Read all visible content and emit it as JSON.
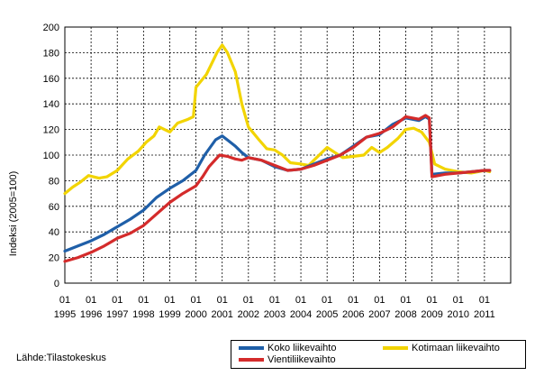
{
  "chart_data": {
    "type": "line",
    "title": "",
    "ylabel": "Indeksi (2005=100)",
    "xlabel": "",
    "ylim": [
      0,
      200
    ],
    "yticks": [
      0,
      20,
      40,
      60,
      80,
      100,
      120,
      140,
      160,
      180,
      200
    ],
    "xlim": [
      1995.0,
      2012.0
    ],
    "x_tick_labels": [
      {
        "month": "01",
        "year": "1995"
      },
      {
        "month": "01",
        "year": "1996"
      },
      {
        "month": "01",
        "year": "1997"
      },
      {
        "month": "01",
        "year": "1998"
      },
      {
        "month": "01",
        "year": "1999"
      },
      {
        "month": "01",
        "year": "2000"
      },
      {
        "month": "01",
        "year": "2001"
      },
      {
        "month": "01",
        "year": "2002"
      },
      {
        "month": "01",
        "year": "2003"
      },
      {
        "month": "01",
        "year": "2004"
      },
      {
        "month": "01",
        "year": "2005"
      },
      {
        "month": "01",
        "year": "2006"
      },
      {
        "month": "01",
        "year": "2007"
      },
      {
        "month": "01",
        "year": "2008"
      },
      {
        "month": "01",
        "year": "2009"
      },
      {
        "month": "01",
        "year": "2010"
      },
      {
        "month": "01",
        "year": "2011"
      }
    ],
    "grid": true,
    "legend_position": "bottom-right",
    "series": [
      {
        "name": "Koko liikevaihto",
        "color": "#1f5fa8",
        "points": [
          [
            1995.0,
            25
          ],
          [
            1995.5,
            29
          ],
          [
            1996.0,
            33
          ],
          [
            1996.5,
            38
          ],
          [
            1997.0,
            44
          ],
          [
            1997.5,
            50
          ],
          [
            1998.0,
            57
          ],
          [
            1998.5,
            67
          ],
          [
            1999.0,
            74
          ],
          [
            1999.5,
            80
          ],
          [
            2000.0,
            88
          ],
          [
            2000.33,
            100
          ],
          [
            2000.75,
            112
          ],
          [
            2001.0,
            115
          ],
          [
            2001.25,
            111
          ],
          [
            2001.5,
            107
          ],
          [
            2001.75,
            102
          ],
          [
            2002.0,
            98
          ],
          [
            2002.5,
            96
          ],
          [
            2003.0,
            91
          ],
          [
            2003.5,
            88
          ],
          [
            2004.0,
            89
          ],
          [
            2004.5,
            93
          ],
          [
            2005.0,
            97
          ],
          [
            2005.5,
            100
          ],
          [
            2006.0,
            107
          ],
          [
            2006.5,
            114
          ],
          [
            2007.0,
            116
          ],
          [
            2007.5,
            124
          ],
          [
            2008.0,
            129
          ],
          [
            2008.5,
            127
          ],
          [
            2008.75,
            130
          ],
          [
            2008.9,
            128
          ],
          [
            2009.0,
            85
          ],
          [
            2009.5,
            86
          ],
          [
            2010.0,
            86
          ],
          [
            2010.5,
            87
          ],
          [
            2011.0,
            88
          ],
          [
            2011.2,
            88
          ]
        ]
      },
      {
        "name": "Kotimaan liikevaihto",
        "color": "#f2d400",
        "points": [
          [
            1995.0,
            70
          ],
          [
            1995.3,
            75
          ],
          [
            1995.6,
            79
          ],
          [
            1995.9,
            84
          ],
          [
            1996.3,
            82
          ],
          [
            1996.6,
            83
          ],
          [
            1997.0,
            88
          ],
          [
            1997.4,
            97
          ],
          [
            1997.8,
            103
          ],
          [
            1998.1,
            110
          ],
          [
            1998.4,
            115
          ],
          [
            1998.6,
            122
          ],
          [
            1999.0,
            118
          ],
          [
            1999.3,
            125
          ],
          [
            1999.7,
            128
          ],
          [
            1999.9,
            130
          ],
          [
            2000.0,
            153
          ],
          [
            2000.4,
            163
          ],
          [
            2000.8,
            180
          ],
          [
            2001.0,
            186
          ],
          [
            2001.2,
            180
          ],
          [
            2001.5,
            165
          ],
          [
            2001.75,
            140
          ],
          [
            2002.0,
            122
          ],
          [
            2002.4,
            112
          ],
          [
            2002.7,
            105
          ],
          [
            2003.0,
            104
          ],
          [
            2003.3,
            100
          ],
          [
            2003.6,
            94
          ],
          [
            2004.0,
            93
          ],
          [
            2004.3,
            92
          ],
          [
            2004.6,
            98
          ],
          [
            2005.0,
            106
          ],
          [
            2005.3,
            102
          ],
          [
            2005.6,
            98
          ],
          [
            2006.0,
            99
          ],
          [
            2006.4,
            100
          ],
          [
            2006.7,
            106
          ],
          [
            2007.0,
            102
          ],
          [
            2007.3,
            106
          ],
          [
            2007.7,
            113
          ],
          [
            2008.0,
            120
          ],
          [
            2008.3,
            121
          ],
          [
            2008.6,
            118
          ],
          [
            2008.9,
            110
          ],
          [
            2009.1,
            93
          ],
          [
            2009.5,
            89
          ],
          [
            2010.0,
            87
          ],
          [
            2010.5,
            86
          ],
          [
            2011.0,
            88
          ],
          [
            2011.2,
            87
          ]
        ]
      },
      {
        "name": "Vientiliikevaihto",
        "color": "#d42b2b",
        "points": [
          [
            1995.0,
            17
          ],
          [
            1995.5,
            20
          ],
          [
            1996.0,
            24
          ],
          [
            1996.5,
            29
          ],
          [
            1997.0,
            35
          ],
          [
            1997.5,
            39
          ],
          [
            1998.0,
            45
          ],
          [
            1998.5,
            54
          ],
          [
            1999.0,
            63
          ],
          [
            1999.5,
            70
          ],
          [
            2000.0,
            76
          ],
          [
            2000.25,
            83
          ],
          [
            2000.5,
            91
          ],
          [
            2000.9,
            100
          ],
          [
            2001.2,
            99
          ],
          [
            2001.5,
            97
          ],
          [
            2001.75,
            96
          ],
          [
            2002.0,
            98
          ],
          [
            2002.5,
            96
          ],
          [
            2003.0,
            92
          ],
          [
            2003.5,
            88
          ],
          [
            2004.0,
            89
          ],
          [
            2004.5,
            92
          ],
          [
            2005.0,
            96
          ],
          [
            2005.5,
            100
          ],
          [
            2006.0,
            106
          ],
          [
            2006.5,
            114
          ],
          [
            2007.0,
            117
          ],
          [
            2007.5,
            122
          ],
          [
            2008.0,
            130
          ],
          [
            2008.5,
            128
          ],
          [
            2008.75,
            131
          ],
          [
            2008.9,
            129
          ],
          [
            2009.0,
            83
          ],
          [
            2009.5,
            85
          ],
          [
            2010.0,
            86
          ],
          [
            2010.5,
            87
          ],
          [
            2011.0,
            88
          ],
          [
            2011.2,
            88
          ]
        ]
      }
    ]
  },
  "source_text": "Lähde:Tilastokeskus"
}
